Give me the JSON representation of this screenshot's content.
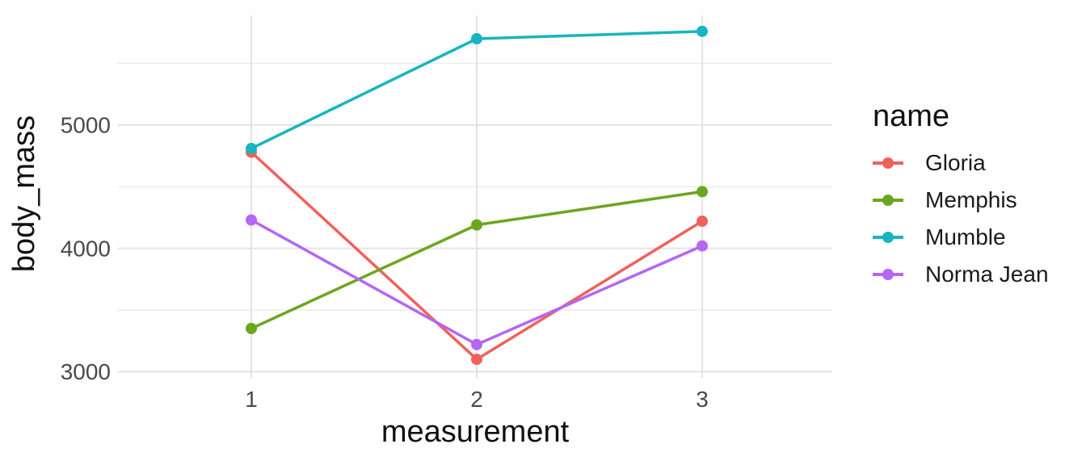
{
  "chart_data": {
    "type": "line",
    "x": [
      "1",
      "2",
      "3"
    ],
    "xlabel": "measurement",
    "ylabel": "body_mass",
    "legend_title": "name",
    "legend_position": "right",
    "series": [
      {
        "name": "Gloria",
        "color": "#F0615C",
        "values": [
          4780,
          3100,
          4220
        ]
      },
      {
        "name": "Memphis",
        "color": "#6BA61F",
        "values": [
          3350,
          4190,
          4460
        ]
      },
      {
        "name": "Mumble",
        "color": "#17B5BF",
        "values": [
          4810,
          5700,
          5760
        ]
      },
      {
        "name": "Norma Jean",
        "color": "#B566F2",
        "values": [
          4230,
          3220,
          4020
        ]
      }
    ],
    "yticks": [
      3000,
      4000,
      5000
    ],
    "yticks_minor": [
      3500,
      4500,
      5500
    ],
    "ylim": [
      2950,
      5890
    ],
    "grid": true,
    "background": "#FFFFFF",
    "gridline_color": "#E3E3E3",
    "tick_label_color": "#4A4A4A"
  }
}
